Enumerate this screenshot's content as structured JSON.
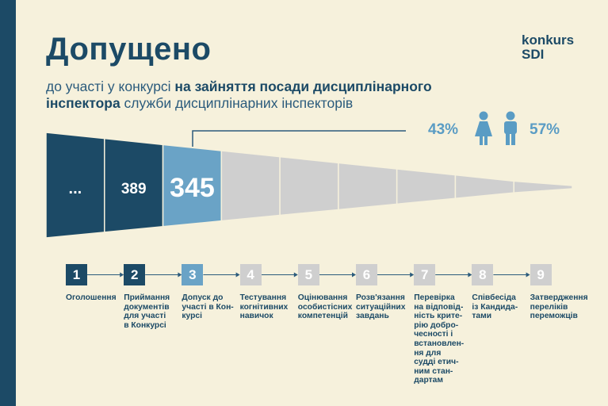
{
  "title": "Допущено",
  "brand": {
    "line1": "konkurs",
    "line2": "SDI"
  },
  "subtitle": {
    "part1": "до участі у конкурсі ",
    "bold1": "на зайняття посади дисциплінарного",
    "bold2": "інспектора",
    "part2": " служби дисциплінарних інспекторів"
  },
  "gender": {
    "female_pct": "43%",
    "male_pct": "57%",
    "female_icon": "female-icon",
    "male_icon": "male-icon"
  },
  "funnel": [
    {
      "label": "...",
      "color": "#1c4a66"
    },
    {
      "label": "389",
      "color": "#1c4a66"
    },
    {
      "label": "345",
      "color": "#6aa3c6"
    },
    {
      "label": "",
      "color": "#cfcfcf"
    },
    {
      "label": "",
      "color": "#cfcfcf"
    },
    {
      "label": "",
      "color": "#cfcfcf"
    },
    {
      "label": "",
      "color": "#cfcfcf"
    },
    {
      "label": "",
      "color": "#cfcfcf"
    },
    {
      "label": "",
      "color": "#cfcfcf"
    }
  ],
  "steps": [
    {
      "num": "1",
      "color": "#1c4a66",
      "lines": [
        "Оголошення"
      ]
    },
    {
      "num": "2",
      "color": "#1c4a66",
      "lines": [
        "Приймання",
        "документів",
        "для участі",
        "в Конкурсі"
      ]
    },
    {
      "num": "3",
      "color": "#6aa3c6",
      "lines": [
        "Допуск до",
        "участі в Кон-",
        "курсі"
      ]
    },
    {
      "num": "4",
      "color": "#cfcfcf",
      "lines": [
        "Тестування",
        "когнітивних",
        "навичок"
      ]
    },
    {
      "num": "5",
      "color": "#cfcfcf",
      "lines": [
        "Оцінювання",
        "особистісних",
        "компетенцій"
      ]
    },
    {
      "num": "6",
      "color": "#cfcfcf",
      "lines": [
        "Розв'язання",
        "ситуаційних",
        "завдань"
      ]
    },
    {
      "num": "7",
      "color": "#cfcfcf",
      "lines": [
        "Перевірка",
        "на відповід-",
        "ність крите-",
        "рію добро-",
        "чесності і",
        "встановлен-",
        "ня для",
        "судді етич-",
        "ним стан-",
        "дартам"
      ]
    },
    {
      "num": "8",
      "color": "#cfcfcf",
      "lines": [
        "Співбесіда",
        "із Кандида-",
        "тами"
      ]
    },
    {
      "num": "9",
      "color": "#cfcfcf",
      "lines": [
        "Затвердження",
        "переліків",
        "переможців"
      ]
    }
  ]
}
